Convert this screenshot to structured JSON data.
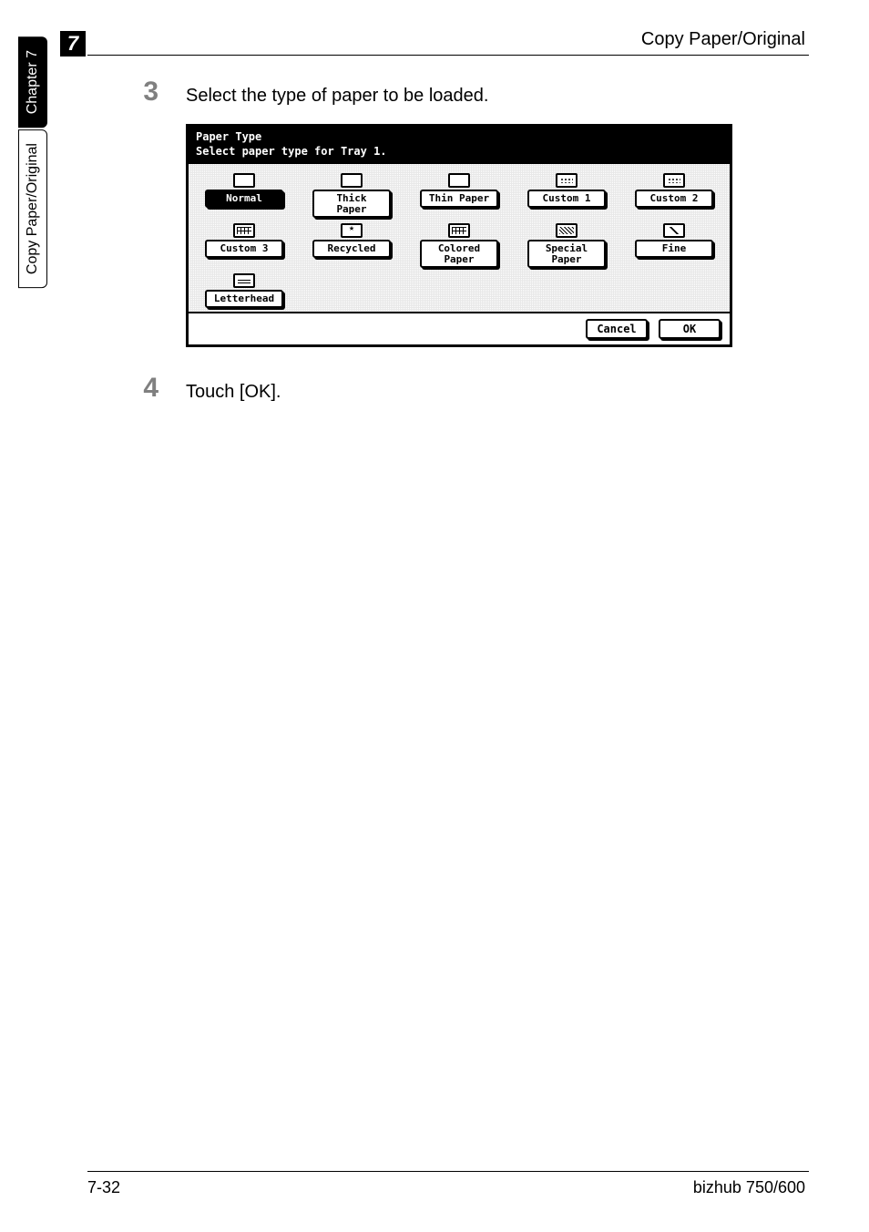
{
  "chapter_badge": "7",
  "header_title": "Copy Paper/Original",
  "side_tabs": {
    "chapter": "Chapter 7",
    "section": "Copy Paper/Original"
  },
  "steps": [
    {
      "num": "3",
      "text": "Select the type of paper to be loaded."
    },
    {
      "num": "4",
      "text": "Touch [OK]."
    }
  ],
  "lcd": {
    "title": "Paper Type",
    "subtitle": "Select paper type for Tray 1.",
    "buttons": [
      {
        "label": "Normal",
        "selected": true,
        "icon": "plain"
      },
      {
        "label": "Thick\nPaper",
        "selected": false,
        "icon": "plain"
      },
      {
        "label": "Thin Paper",
        "selected": false,
        "icon": "plain"
      },
      {
        "label": "Custom 1",
        "selected": false,
        "icon": "dots"
      },
      {
        "label": "Custom 2",
        "selected": false,
        "icon": "dots"
      },
      {
        "label": "Custom 3",
        "selected": false,
        "icon": "grid"
      },
      {
        "label": "Recycled",
        "selected": false,
        "icon": "star"
      },
      {
        "label": "Colored\nPaper",
        "selected": false,
        "icon": "grid"
      },
      {
        "label": "Special\nPaper",
        "selected": false,
        "icon": "hash"
      },
      {
        "label": "Fine",
        "selected": false,
        "icon": "diag"
      },
      {
        "label": "Letterhead",
        "selected": false,
        "icon": "lines"
      }
    ],
    "footer": {
      "cancel": "Cancel",
      "ok": "OK"
    }
  },
  "footer": {
    "page": "7-32",
    "model": "bizhub 750/600"
  },
  "colors": {
    "text": "#000000",
    "step_num": "#808080",
    "lcd_bg": "#ffffff",
    "lcd_header_bg": "#000000",
    "lcd_header_fg": "#ffffff"
  }
}
